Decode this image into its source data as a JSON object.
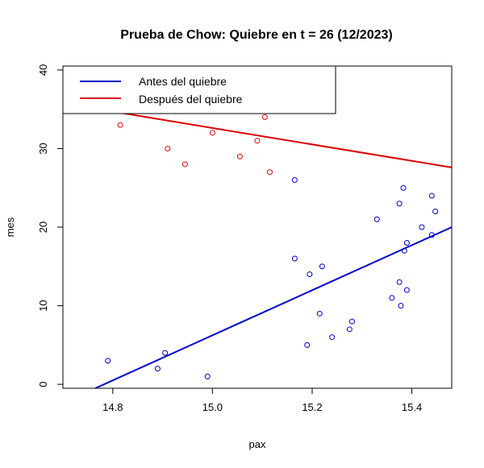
{
  "chart_data": {
    "type": "scatter",
    "title": "Prueba de Chow: Quiebre en t = 26 (12/2023)",
    "xlabel": "pax",
    "ylabel": "mes",
    "xlim": [
      14.7,
      15.48
    ],
    "ylim": [
      -0.5,
      40.5
    ],
    "x_ticks": [
      14.8,
      15.0,
      15.2,
      15.4
    ],
    "x_tick_labels": [
      "14.8",
      "15.0",
      "15.2",
      "15.4"
    ],
    "y_ticks": [
      0,
      10,
      20,
      30,
      40
    ],
    "y_tick_labels": [
      "0",
      "10",
      "20",
      "30",
      "40"
    ],
    "grid": false,
    "legend_position": "top-left",
    "series": [
      {
        "name": "Antes del quiebre",
        "color": "#0000CC",
        "points": [
          [
            14.79,
            3
          ],
          [
            14.89,
            2
          ],
          [
            14.905,
            4
          ],
          [
            14.99,
            1
          ],
          [
            15.165,
            16
          ],
          [
            15.165,
            26
          ],
          [
            15.19,
            5
          ],
          [
            15.195,
            14
          ],
          [
            15.215,
            9
          ],
          [
            15.22,
            15
          ],
          [
            15.24,
            6
          ],
          [
            15.275,
            7
          ],
          [
            15.28,
            8
          ],
          [
            15.33,
            21
          ],
          [
            15.36,
            11
          ],
          [
            15.375,
            13
          ],
          [
            15.375,
            23
          ],
          [
            15.378,
            10
          ],
          [
            15.383,
            25
          ],
          [
            15.385,
            17
          ],
          [
            15.39,
            12
          ],
          [
            15.39,
            18
          ],
          [
            15.42,
            20
          ],
          [
            15.44,
            24
          ],
          [
            15.44,
            19
          ],
          [
            15.447,
            22
          ]
        ],
        "fit_line": {
          "x": [
            14.765,
            15.48
          ],
          "y": [
            -0.5,
            20
          ]
        }
      },
      {
        "name": "Después del quiebre",
        "color": "#DD0000",
        "points": [
          [
            14.815,
            33
          ],
          [
            14.91,
            30
          ],
          [
            14.945,
            28
          ],
          [
            15.0,
            32
          ],
          [
            15.055,
            29
          ],
          [
            15.09,
            31
          ],
          [
            15.105,
            34
          ],
          [
            15.115,
            27
          ]
        ],
        "fit_line": {
          "x": [
            14.82,
            15.48
          ],
          "y": [
            34.5,
            27.6
          ]
        }
      }
    ]
  }
}
